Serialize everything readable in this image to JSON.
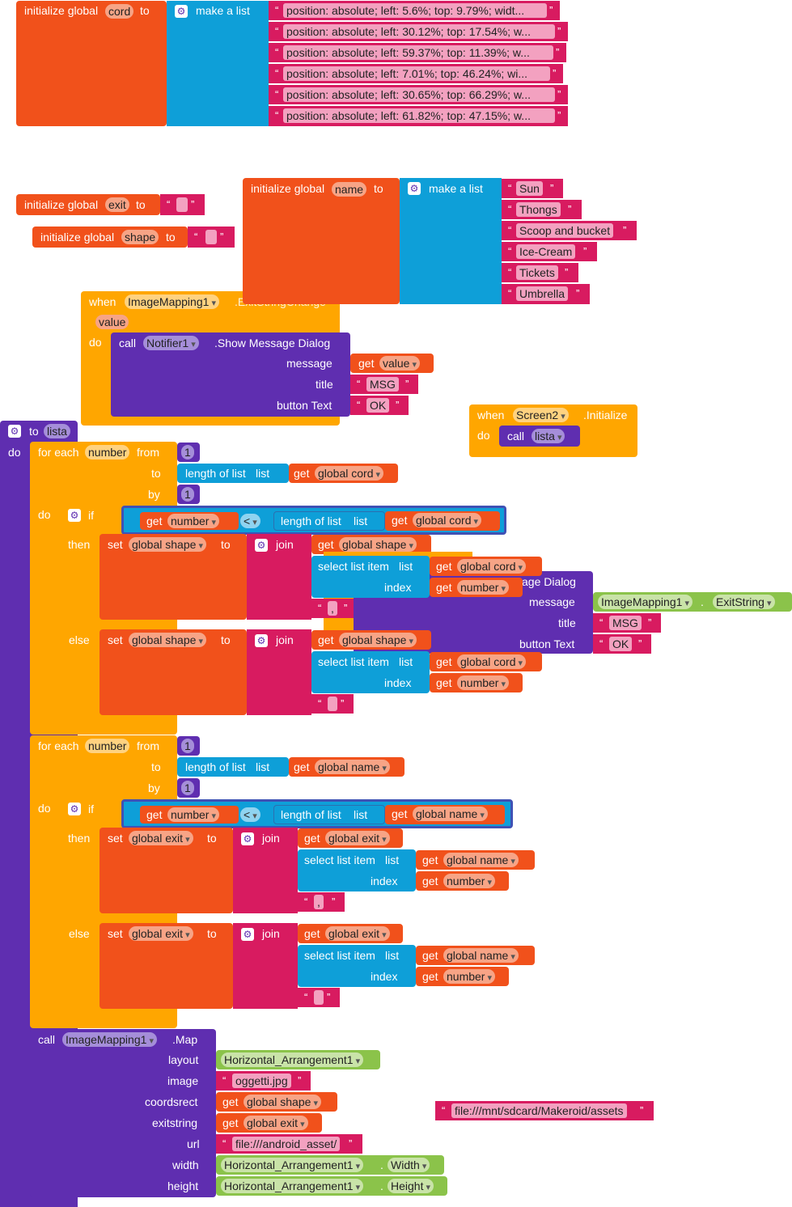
{
  "labels": {
    "initialize_global": "initialize global",
    "to": "to",
    "make_a_list": "make a list",
    "when": "when",
    "do": "do",
    "call": "call",
    "get": "get",
    "set": "set",
    "if": "if",
    "then": "then",
    "else": "else",
    "join": "join",
    "for_each": "for each",
    "from": "from",
    "by": "by",
    "length_of_list": "length of list",
    "list": "list",
    "select_list_item": "select list item",
    "index": "index",
    "less_than": "<",
    "message": "message",
    "title": "title",
    "button_text": "button Text",
    "layout": "layout",
    "image": "image",
    "coordsrect": "coordsrect",
    "exitstring": "exitstring",
    "url": "url",
    "width": "width",
    "height": "height",
    "value": "value",
    "dot": ".",
    "open_quote": "“",
    "close_quote": "”"
  },
  "vars": {
    "cord": "cord",
    "exit": "exit",
    "shape": "shape",
    "name": "name",
    "number": "number",
    "lista": "lista",
    "value": "value",
    "global_cord": "global cord",
    "global_shape": "global shape",
    "global_name": "global name",
    "global_exit": "global exit"
  },
  "cord_list": [
    "position: absolute; left: 5.6%; top: 9.79%; widt...",
    "position: absolute; left: 30.12%; top: 17.54%; w...",
    "position: absolute; left: 59.37%; top: 11.39%; w...",
    "position: absolute; left: 7.01%; top: 46.24%; wi...",
    "position: absolute; left: 30.65%; top: 66.29%; w...",
    "position: absolute; left: 61.82%; top: 47.15%; w..."
  ],
  "name_list": [
    "Sun",
    "Thongs",
    "Scoop and bucket",
    "Ice-Cream",
    "Tickets",
    "Umbrella"
  ],
  "strings": {
    "empty": " ",
    "msg": "MSG",
    "ok": "OK",
    "sep_shape": ",",
    "sep_exit": ",",
    "oggetti": "oggetti.jpg",
    "android_asset": "file:///android_asset/",
    "sdcard": "file:///mnt/sdcard/Makeroid/assets"
  },
  "components": {
    "image_mapping": "ImageMapping1",
    "notifier": "Notifier1",
    "screen": "Screen2",
    "arrangement": "Horizontal_Arrangement1"
  },
  "events": {
    "exit_string_change": ".ExitStringChange",
    "initialize": ".Initialize"
  },
  "methods": {
    "show_message_dialog": ".Show Message Dialog",
    "show_message_dialog_partial": "age Dialog",
    "map": ".Map"
  },
  "props": {
    "exit_string": "ExitString",
    "width": "Width",
    "height": "Height"
  },
  "number_literals": {
    "one": "1"
  }
}
